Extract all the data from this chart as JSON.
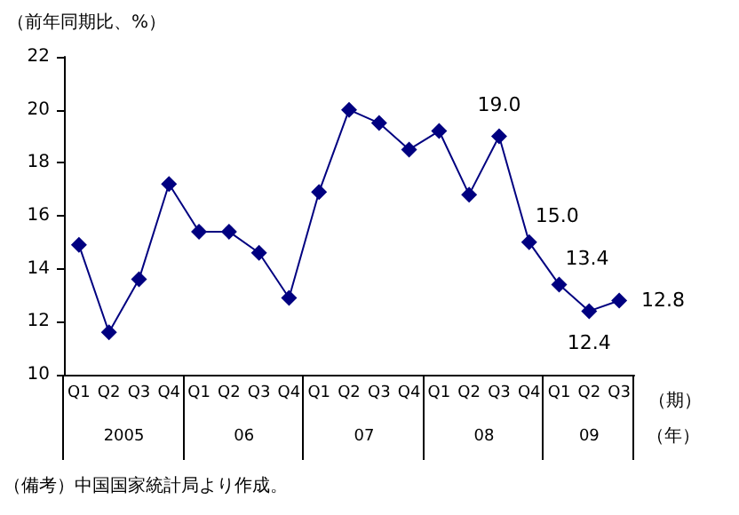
{
  "chart_data": {
    "type": "line",
    "ylabel": "（前年同期比、%）",
    "xlabel": "（期）",
    "categories": [
      "Q1",
      "Q2",
      "Q3",
      "Q4",
      "Q1",
      "Q2",
      "Q3",
      "Q4",
      "Q1",
      "Q2",
      "Q3",
      "Q4",
      "Q1",
      "Q2",
      "Q3",
      "Q4",
      "Q1",
      "Q2",
      "Q3"
    ],
    "series": [
      {
        "color": "#000080",
        "values": [
          14.9,
          11.6,
          13.6,
          17.2,
          15.4,
          15.4,
          14.6,
          12.9,
          16.9,
          20.0,
          19.5,
          18.5,
          19.2,
          16.8,
          19.0,
          15.0,
          13.4,
          12.4,
          12.8
        ],
        "value_labels": [
          null,
          null,
          null,
          null,
          null,
          null,
          null,
          null,
          null,
          null,
          null,
          null,
          null,
          null,
          "19.0",
          "15.0",
          "13.4",
          "12.4",
          "12.8"
        ]
      }
    ],
    "ylim": [
      10,
      22
    ],
    "yticks": [
      10,
      12,
      14,
      16,
      18,
      20,
      22
    ],
    "grid": false,
    "marker": "diamond",
    "line_style": "solid",
    "annotations": [
      "2005",
      "06",
      "07",
      "08",
      "09",
      "（年）",
      "（備考）中国国家統計局より作成。"
    ]
  }
}
